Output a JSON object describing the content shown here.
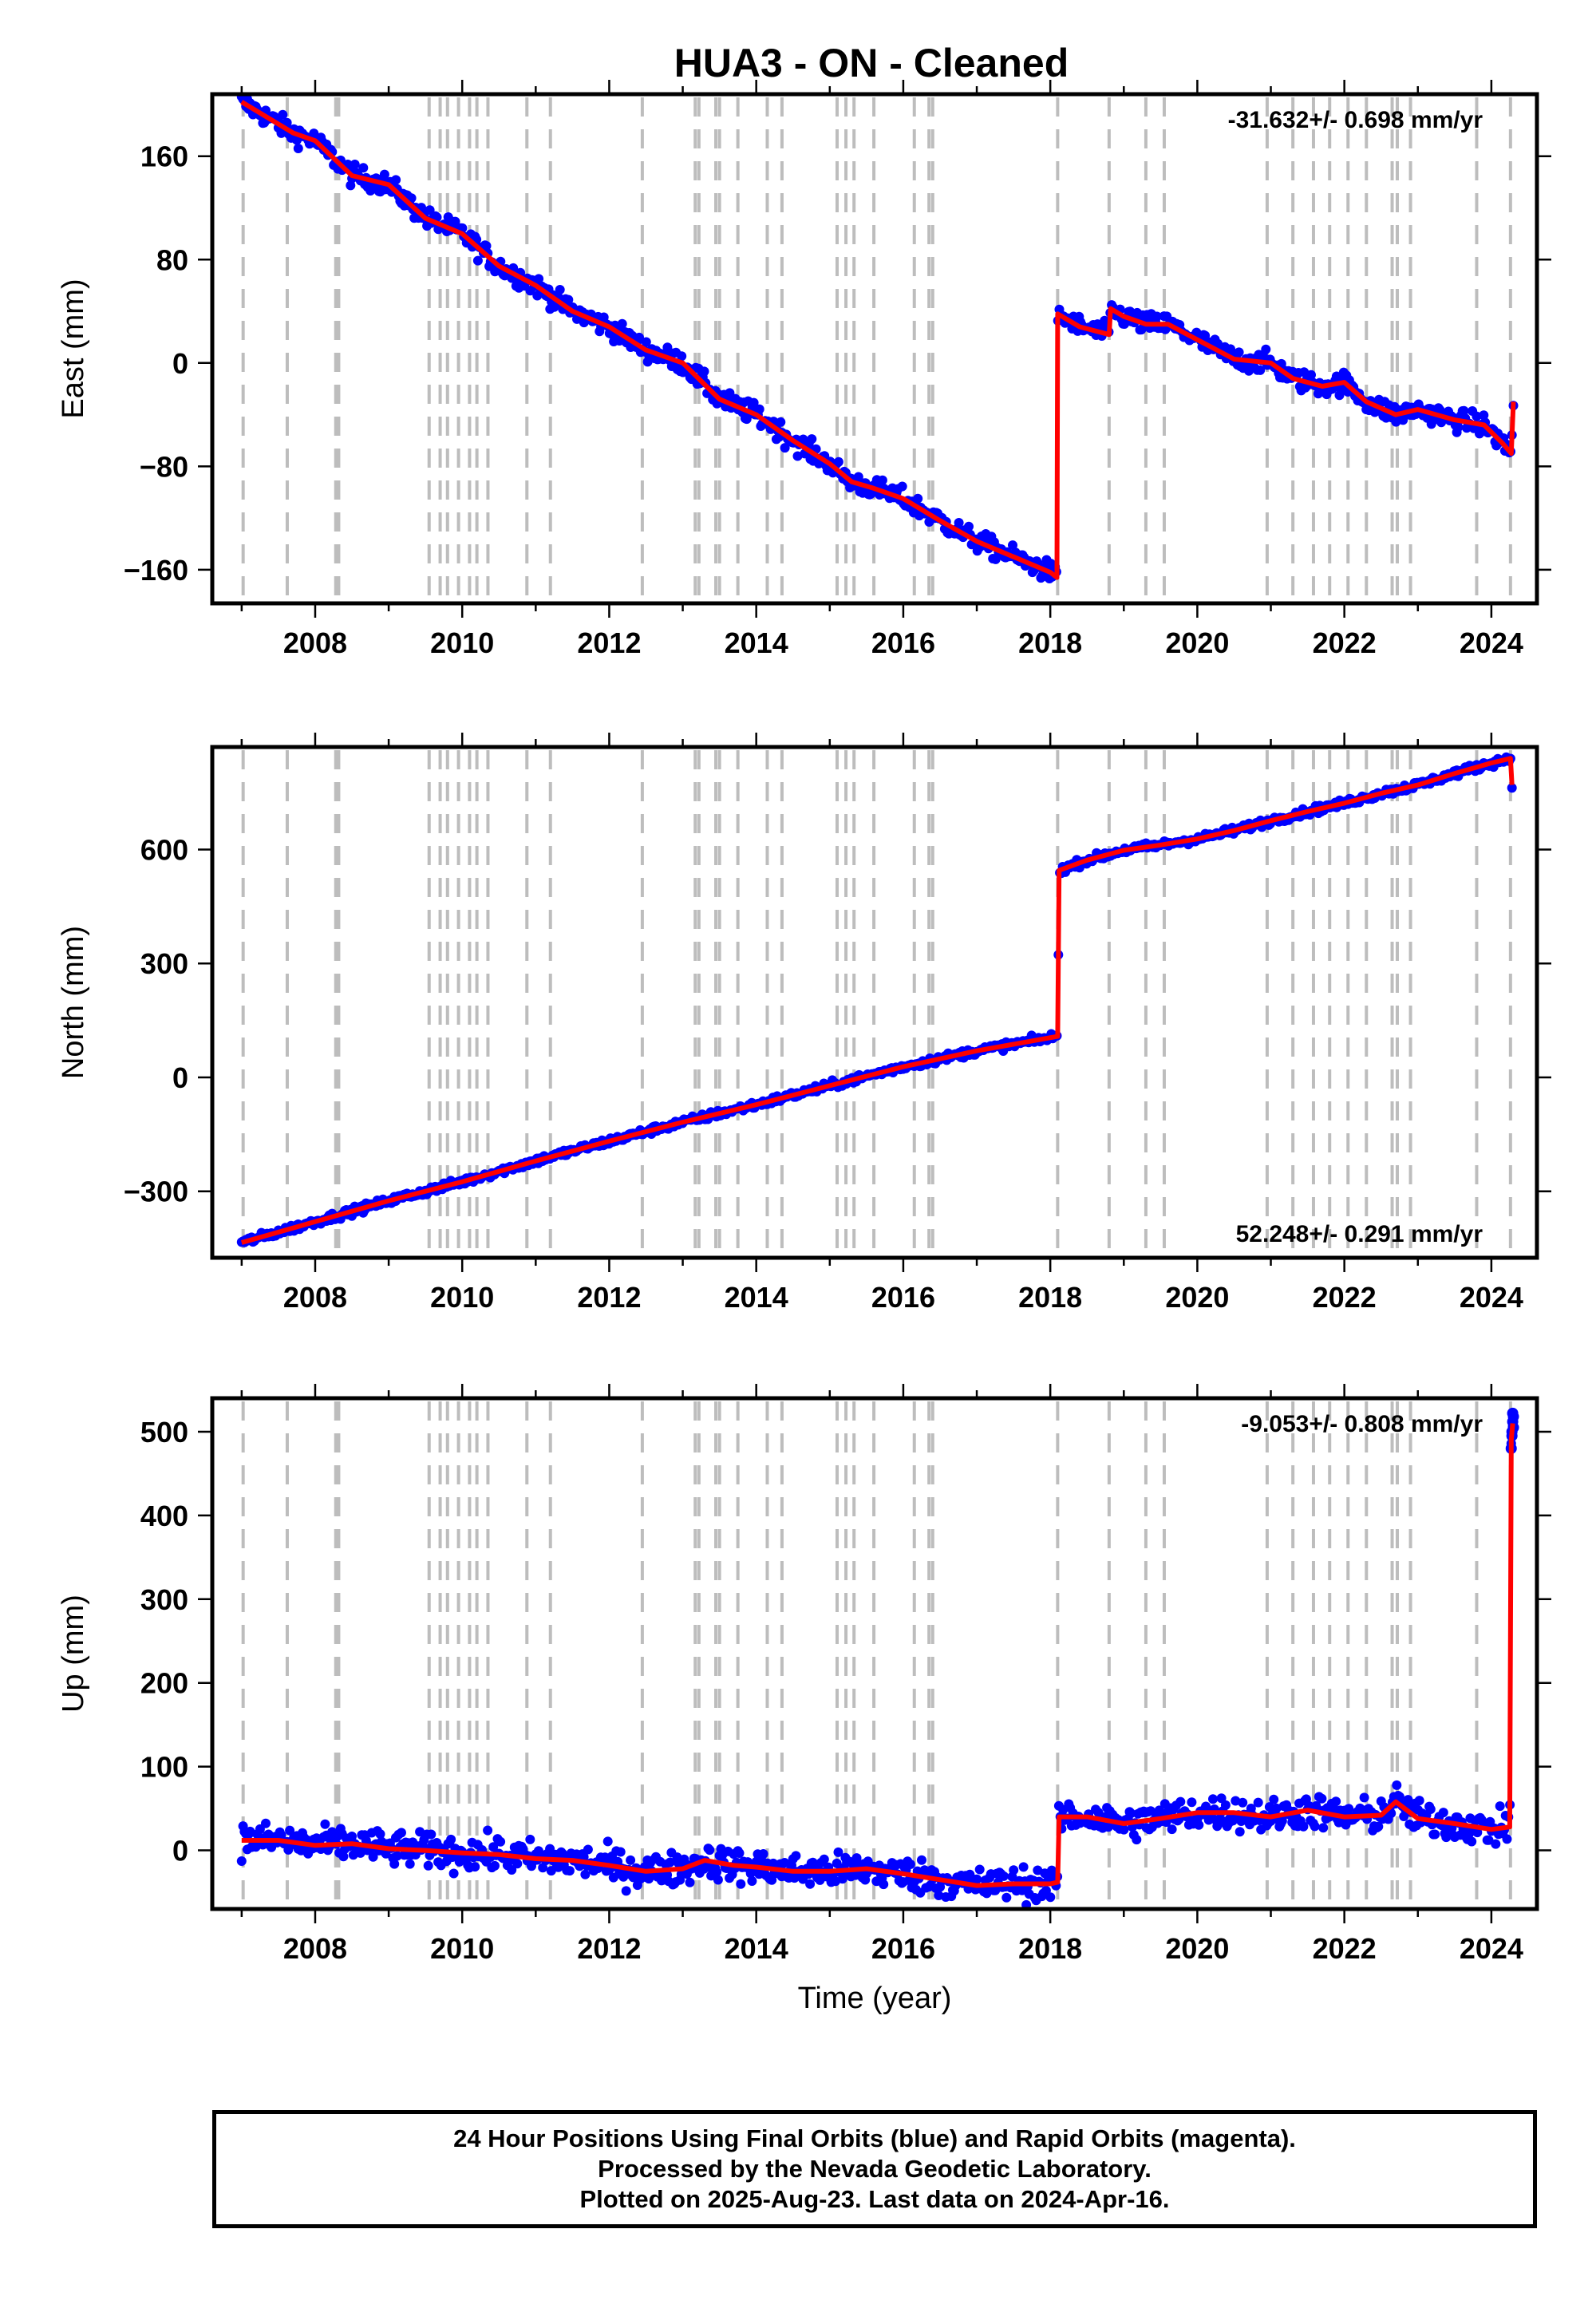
{
  "title": "HUA3  - ON - Cleaned",
  "footer": {
    "lines": [
      "24 Hour Positions Using Final Orbits (blue) and Rapid Orbits (magenta).",
      "Processed by the Nevada Geodetic Laboratory.",
      "Plotted on 2025-Aug-23. Last data on 2024-Apr-16."
    ]
  },
  "colors": {
    "data_points": "#0000ff",
    "model": "#ff0000",
    "event_lines": "#bdbdbd"
  },
  "chart_data": [
    {
      "type": "scatter",
      "ylabel": "East (mm)",
      "xlabel": "",
      "xlim": [
        2006.6,
        2024.62
      ],
      "ylim": [
        -186,
        208
      ],
      "yticks": [
        -160,
        -80,
        0,
        80,
        160
      ],
      "ytick_labels": [
        "−160",
        "−80",
        "0",
        "80",
        "160"
      ],
      "xticks": [
        2008,
        2010,
        2012,
        2014,
        2016,
        2018,
        2020,
        2022,
        2024
      ],
      "xtick_labels": [
        "2008",
        "2010",
        "2012",
        "2014",
        "2016",
        "2018",
        "2020",
        "2022",
        "2024"
      ],
      "rate_label": "-31.632+/- 0.698 mm/yr",
      "rate_position": "top-right",
      "noise": 4,
      "model": [
        [
          2007.0,
          202
        ],
        [
          2007.7,
          178
        ],
        [
          2008.0,
          172
        ],
        [
          2008.5,
          145
        ],
        [
          2009.0,
          138
        ],
        [
          2009.5,
          112
        ],
        [
          2010.0,
          100
        ],
        [
          2010.5,
          75
        ],
        [
          2011.0,
          60
        ],
        [
          2011.5,
          40
        ],
        [
          2012.0,
          28
        ],
        [
          2012.5,
          10
        ],
        [
          2013.0,
          0
        ],
        [
          2013.5,
          -28
        ],
        [
          2014.0,
          -40
        ],
        [
          2014.5,
          -60
        ],
        [
          2015.0,
          -78
        ],
        [
          2015.3,
          -92
        ],
        [
          2015.6,
          -97
        ],
        [
          2016.0,
          -105
        ],
        [
          2016.5,
          -122
        ],
        [
          2017.0,
          -138
        ],
        [
          2017.5,
          -150
        ],
        [
          2018.0,
          -162
        ],
        [
          2018.09,
          -166
        ],
        [
          2018.1,
          38
        ],
        [
          2018.4,
          28
        ],
        [
          2018.8,
          22
        ],
        [
          2018.82,
          42
        ],
        [
          2019.0,
          36
        ],
        [
          2019.3,
          30
        ],
        [
          2019.6,
          30
        ],
        [
          2020.0,
          18
        ],
        [
          2020.5,
          3
        ],
        [
          2021.0,
          0
        ],
        [
          2021.3,
          -12
        ],
        [
          2021.7,
          -18
        ],
        [
          2022.0,
          -15
        ],
        [
          2022.3,
          -30
        ],
        [
          2022.7,
          -40
        ],
        [
          2023.0,
          -36
        ],
        [
          2023.5,
          -44
        ],
        [
          2023.9,
          -48
        ],
        [
          2024.15,
          -62
        ],
        [
          2024.27,
          -70
        ],
        [
          2024.3,
          -30
        ]
      ]
    },
    {
      "type": "scatter",
      "ylabel": "North (mm)",
      "xlabel": "",
      "xlim": [
        2006.6,
        2024.62
      ],
      "ylim": [
        -475,
        870
      ],
      "yticks": [
        -300,
        0,
        300,
        600
      ],
      "ytick_labels": [
        "−300",
        "0",
        "300",
        "600"
      ],
      "xticks": [
        2008,
        2010,
        2012,
        2014,
        2016,
        2018,
        2020,
        2022,
        2024
      ],
      "xtick_labels": [
        "2008",
        "2010",
        "2012",
        "2014",
        "2016",
        "2018",
        "2020",
        "2022",
        "2024"
      ],
      "rate_label": "52.248+/- 0.291 mm/yr",
      "rate_position": "bottom-right",
      "noise": 5,
      "model": [
        [
          2007.0,
          -435
        ],
        [
          2008.0,
          -380
        ],
        [
          2009.0,
          -325
        ],
        [
          2010.0,
          -275
        ],
        [
          2011.0,
          -220
        ],
        [
          2012.0,
          -168
        ],
        [
          2013.0,
          -118
        ],
        [
          2014.0,
          -72
        ],
        [
          2015.0,
          -22
        ],
        [
          2016.0,
          28
        ],
        [
          2017.0,
          70
        ],
        [
          2018.1,
          108
        ],
        [
          2018.12,
          545
        ],
        [
          2018.5,
          572
        ],
        [
          2019.0,
          598
        ],
        [
          2019.5,
          612
        ],
        [
          2020.0,
          628
        ],
        [
          2020.5,
          650
        ],
        [
          2021.0,
          676
        ],
        [
          2021.5,
          700
        ],
        [
          2022.0,
          722
        ],
        [
          2022.5,
          748
        ],
        [
          2023.0,
          770
        ],
        [
          2023.5,
          800
        ],
        [
          2024.0,
          828
        ],
        [
          2024.26,
          840
        ],
        [
          2024.28,
          770
        ]
      ]
    },
    {
      "type": "scatter",
      "ylabel": "Up (mm)",
      "xlabel": "Time (year)",
      "xlim": [
        2006.6,
        2024.62
      ],
      "ylim": [
        -70,
        540
      ],
      "yticks": [
        0,
        100,
        200,
        300,
        400,
        500
      ],
      "ytick_labels": [
        "0",
        "100",
        "200",
        "300",
        "400",
        "500"
      ],
      "xticks": [
        2008,
        2010,
        2012,
        2014,
        2016,
        2018,
        2020,
        2022,
        2024
      ],
      "xtick_labels": [
        "2008",
        "2010",
        "2012",
        "2014",
        "2016",
        "2018",
        "2020",
        "2022",
        "2024"
      ],
      "rate_label": "-9.053+/- 0.808 mm/yr",
      "rate_position": "top-right",
      "noise": 10,
      "model": [
        [
          2007.0,
          12
        ],
        [
          2007.5,
          12
        ],
        [
          2008.0,
          6
        ],
        [
          2008.5,
          8
        ],
        [
          2009.0,
          2
        ],
        [
          2009.5,
          0
        ],
        [
          2010.0,
          -3
        ],
        [
          2010.5,
          -5
        ],
        [
          2011.0,
          -10
        ],
        [
          2011.5,
          -12
        ],
        [
          2012.0,
          -18
        ],
        [
          2012.5,
          -25
        ],
        [
          2013.0,
          -22
        ],
        [
          2013.3,
          -12
        ],
        [
          2013.7,
          -18
        ],
        [
          2014.0,
          -20
        ],
        [
          2014.5,
          -25
        ],
        [
          2015.0,
          -25
        ],
        [
          2015.5,
          -22
        ],
        [
          2016.0,
          -28
        ],
        [
          2016.5,
          -35
        ],
        [
          2017.0,
          -42
        ],
        [
          2017.5,
          -40
        ],
        [
          2018.0,
          -40
        ],
        [
          2018.1,
          -38
        ],
        [
          2018.12,
          40
        ],
        [
          2018.5,
          40
        ],
        [
          2019.0,
          32
        ],
        [
          2019.5,
          38
        ],
        [
          2020.0,
          45
        ],
        [
          2020.5,
          45
        ],
        [
          2021.0,
          40
        ],
        [
          2021.5,
          48
        ],
        [
          2022.0,
          40
        ],
        [
          2022.5,
          42
        ],
        [
          2022.7,
          58
        ],
        [
          2023.0,
          38
        ],
        [
          2023.5,
          32
        ],
        [
          2024.0,
          25
        ],
        [
          2024.25,
          28
        ],
        [
          2024.27,
          490
        ],
        [
          2024.29,
          510
        ]
      ],
      "outliers": [
        [
          2024.27,
          480
        ],
        [
          2024.28,
          500
        ],
        [
          2024.29,
          512
        ],
        [
          2024.3,
          518
        ],
        [
          2024.29,
          522
        ],
        [
          2024.28,
          495
        ],
        [
          2024.3,
          505
        ]
      ]
    }
  ],
  "event_lines": [
    2007.02,
    2007.62,
    2008.28,
    2008.32,
    2009.55,
    2009.7,
    2009.8,
    2009.95,
    2010.1,
    2010.2,
    2010.35,
    2010.88,
    2011.2,
    2012.45,
    2013.17,
    2013.22,
    2013.45,
    2013.5,
    2013.75,
    2014.15,
    2014.35,
    2015.1,
    2015.22,
    2015.33,
    2015.6,
    2016.15,
    2016.35,
    2016.4,
    2018.1,
    2018.8,
    2019.3,
    2019.55,
    2020.95,
    2021.3,
    2021.58,
    2021.8,
    2022.05,
    2022.3,
    2022.65,
    2022.72,
    2022.9,
    2023.8,
    2024.26
  ]
}
